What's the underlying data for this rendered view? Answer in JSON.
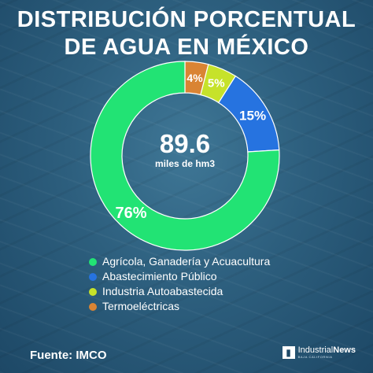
{
  "title": {
    "line1": "DISTRIBUCIÓN PORCENTUAL",
    "line2": "DE AGUA EN MÉXICO"
  },
  "center": {
    "value": "89.6",
    "unit": "miles de hm3"
  },
  "chart_data": {
    "type": "pie",
    "donut": true,
    "title": "DISTRIBUCIÓN PORCENTUAL DE AGUA EN MÉXICO",
    "categories": [
      "Agrícola, Ganadería y Acuacultura",
      "Abastecimiento Público",
      "Industria Autoabastecida",
      "Termoeléctricas"
    ],
    "values": [
      76,
      15,
      5,
      4
    ],
    "labels": [
      "76%",
      "15%",
      "5%",
      "4%"
    ],
    "colors": [
      "#22e374",
      "#2673e0",
      "#c6e22a",
      "#d98434"
    ],
    "legend": "bottom",
    "start": "top, clockwise from 4% segment"
  },
  "legend": {
    "items": [
      {
        "label": "Agrícola, Ganadería y Acuacultura",
        "color": "#22e374"
      },
      {
        "label": "Abastecimiento Público",
        "color": "#2673e0"
      },
      {
        "label": "Industria Autoabastecida",
        "color": "#c6e22a"
      },
      {
        "label": "Termoeléctricas",
        "color": "#d98434"
      }
    ]
  },
  "footer": {
    "source": "Fuente: IMCO",
    "brand_name_a": "Industrial",
    "brand_name_b": "News",
    "brand_tag": "BAJA CALIFORNIA",
    "brand_icon": "industrialnews-logo-icon"
  }
}
